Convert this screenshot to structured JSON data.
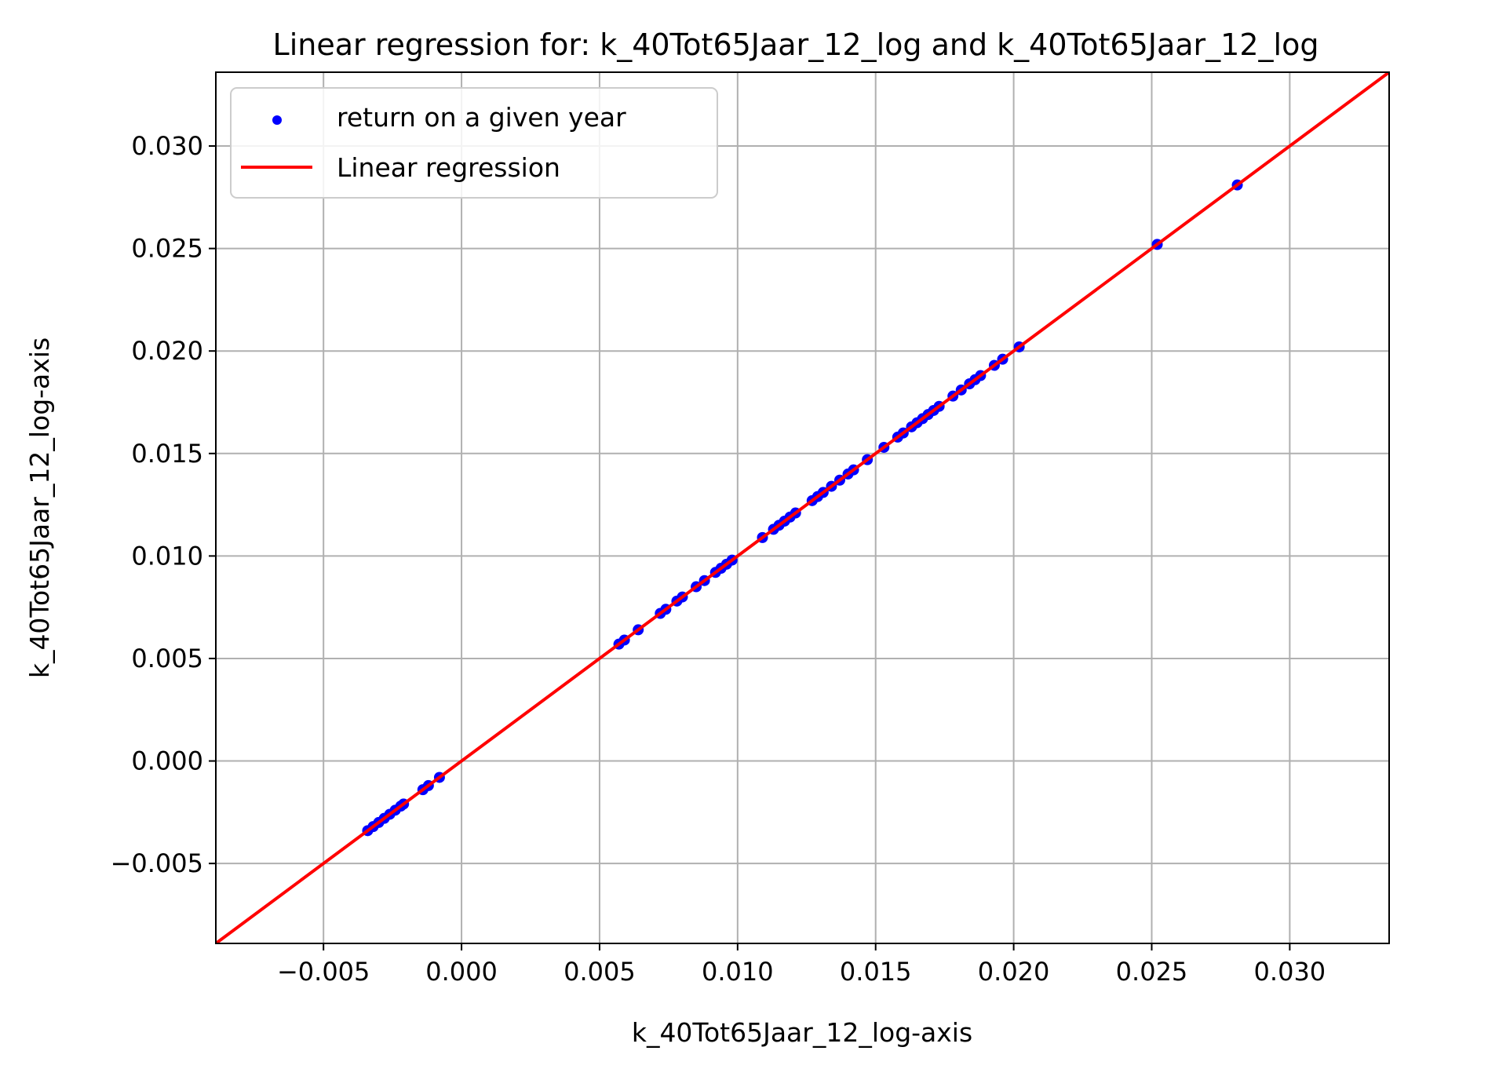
{
  "chart_data": {
    "type": "scatter",
    "title": "Linear regression for: k_40Tot65Jaar_12_log and k_40Tot65Jaar_12_log",
    "xlabel": "k_40Tot65Jaar_12_log-axis",
    "ylabel": "k_40Tot65Jaar_12_log-axis",
    "xlim": [
      -0.0089,
      0.0336
    ],
    "ylim": [
      -0.0089,
      0.0336
    ],
    "x_ticks": [
      -0.005,
      0.0,
      0.005,
      0.01,
      0.015,
      0.02,
      0.025,
      0.03
    ],
    "x_tick_labels": [
      "−0.005",
      "0.000",
      "0.005",
      "0.010",
      "0.015",
      "0.020",
      "0.025",
      "0.030"
    ],
    "y_ticks": [
      -0.005,
      0.0,
      0.005,
      0.01,
      0.015,
      0.02,
      0.025,
      0.03
    ],
    "y_tick_labels": [
      "−0.005",
      "0.000",
      "0.005",
      "0.010",
      "0.015",
      "0.020",
      "0.025",
      "0.030"
    ],
    "grid": true,
    "legend_position": "top-left",
    "series": [
      {
        "name": "return on a given year",
        "kind": "scatter",
        "color": "#0000ff",
        "x": [
          -0.0034,
          -0.0032,
          -0.003,
          -0.0028,
          -0.0026,
          -0.0024,
          -0.0022,
          -0.0021,
          -0.0014,
          -0.0012,
          -0.0008,
          0.0057,
          0.0059,
          0.0064,
          0.0072,
          0.0074,
          0.0078,
          0.008,
          0.0085,
          0.0088,
          0.0092,
          0.0094,
          0.0096,
          0.0098,
          0.0109,
          0.0113,
          0.0115,
          0.0117,
          0.0119,
          0.0121,
          0.0127,
          0.0129,
          0.0131,
          0.0134,
          0.0137,
          0.014,
          0.0142,
          0.0147,
          0.0153,
          0.0158,
          0.016,
          0.0163,
          0.0165,
          0.0167,
          0.0169,
          0.0171,
          0.0173,
          0.0178,
          0.0181,
          0.0184,
          0.0186,
          0.0188,
          0.0193,
          0.0196,
          0.0202,
          0.0252,
          0.0281
        ],
        "y": [
          -0.0034,
          -0.0032,
          -0.003,
          -0.0028,
          -0.0026,
          -0.0024,
          -0.0022,
          -0.0021,
          -0.0014,
          -0.0012,
          -0.0008,
          0.0057,
          0.0059,
          0.0064,
          0.0072,
          0.0074,
          0.0078,
          0.008,
          0.0085,
          0.0088,
          0.0092,
          0.0094,
          0.0096,
          0.0098,
          0.0109,
          0.0113,
          0.0115,
          0.0117,
          0.0119,
          0.0121,
          0.0127,
          0.0129,
          0.0131,
          0.0134,
          0.0137,
          0.014,
          0.0142,
          0.0147,
          0.0153,
          0.0158,
          0.016,
          0.0163,
          0.0165,
          0.0167,
          0.0169,
          0.0171,
          0.0173,
          0.0178,
          0.0181,
          0.0184,
          0.0186,
          0.0188,
          0.0193,
          0.0196,
          0.0202,
          0.0252,
          0.0281
        ]
      },
      {
        "name": "Linear regression",
        "kind": "line",
        "color": "#ff0000",
        "x": [
          -0.0089,
          0.0336
        ],
        "y": [
          -0.0089,
          0.0336
        ]
      }
    ]
  }
}
